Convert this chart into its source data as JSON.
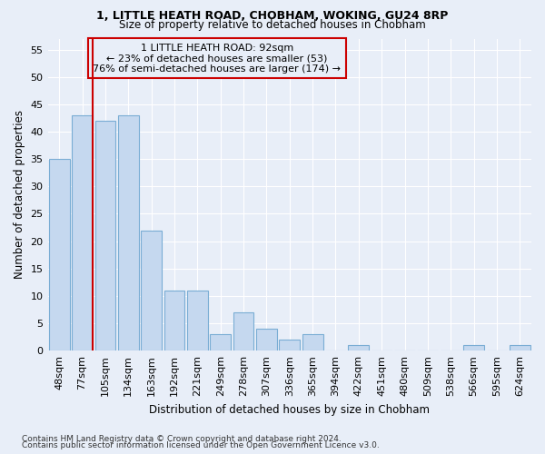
{
  "title1": "1, LITTLE HEATH ROAD, CHOBHAM, WOKING, GU24 8RP",
  "title2": "Size of property relative to detached houses in Chobham",
  "xlabel": "Distribution of detached houses by size in Chobham",
  "ylabel": "Number of detached properties",
  "categories": [
    "48sqm",
    "77sqm",
    "105sqm",
    "134sqm",
    "163sqm",
    "192sqm",
    "221sqm",
    "249sqm",
    "278sqm",
    "307sqm",
    "336sqm",
    "365sqm",
    "394sqm",
    "422sqm",
    "451sqm",
    "480sqm",
    "509sqm",
    "538sqm",
    "566sqm",
    "595sqm",
    "624sqm"
  ],
  "values": [
    35,
    43,
    42,
    43,
    22,
    11,
    11,
    3,
    7,
    4,
    2,
    3,
    0,
    1,
    0,
    0,
    0,
    0,
    1,
    0,
    1
  ],
  "bar_color": "#c5d8ef",
  "bar_edge_color": "#7aadd4",
  "vline_color": "#cc0000",
  "annotation_box_color": "#cc0000",
  "annotation_line1": "1 LITTLE HEATH ROAD: 92sqm",
  "annotation_line2": "← 23% of detached houses are smaller (53)",
  "annotation_line3": "76% of semi-detached houses are larger (174) →",
  "ylim": [
    0,
    57
  ],
  "yticks": [
    0,
    5,
    10,
    15,
    20,
    25,
    30,
    35,
    40,
    45,
    50,
    55
  ],
  "bg_color": "#e8eef8",
  "grid_color": "#ffffff",
  "footer1": "Contains HM Land Registry data © Crown copyright and database right 2024.",
  "footer2": "Contains public sector information licensed under the Open Government Licence v3.0."
}
